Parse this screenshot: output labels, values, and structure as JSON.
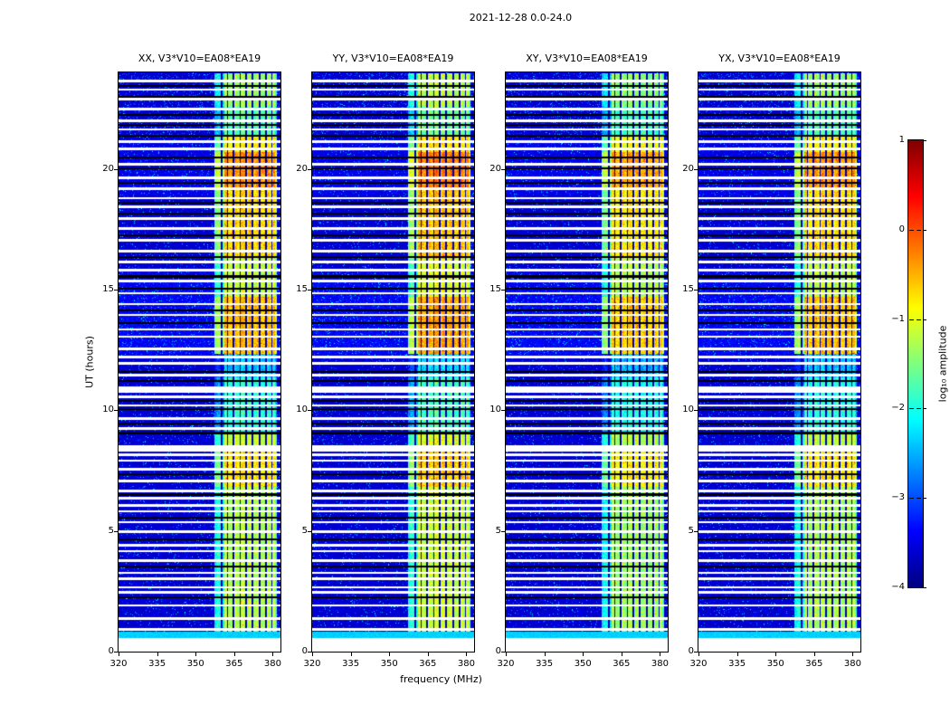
{
  "chart_data": {
    "type": "heatmap",
    "title": "2021-12-28 0.0-24.0",
    "xlabel": "frequency (MHz)",
    "ylabel": "UT (hours)",
    "colorbar_label": "log₁₀ amplitude",
    "x_range": [
      320,
      383
    ],
    "y_range": [
      0,
      24
    ],
    "x_ticks": [
      320,
      335,
      350,
      365,
      380
    ],
    "y_ticks": [
      0,
      5,
      10,
      15,
      20
    ],
    "colorbar": {
      "colormap": "jet",
      "vmin": -4,
      "vmax": 1,
      "ticks": [
        1,
        0,
        -1,
        -2,
        -3,
        -4
      ]
    },
    "panels": [
      {
        "key": "XX",
        "title": "XX, V3*V10=EA08*EA19",
        "level_offset": 0
      },
      {
        "key": "YY",
        "title": "YY, V3*V10=EA08*EA19",
        "level_offset": 0.12
      },
      {
        "key": "XY",
        "title": "XY, V3*V10=EA08*EA19",
        "level_offset": -0.1
      },
      {
        "key": "YX",
        "title": "YX, V3*V10=EA08*EA19",
        "level_offset": -0.03
      }
    ],
    "background_level": -3.6,
    "rfi_band": {
      "f_start": 357.5,
      "f_main": 361.3,
      "f_end": 381.8,
      "channel_notches": [
        360.3,
        362.5,
        364.7,
        367.4,
        369.6,
        372.3,
        374.9,
        377.6,
        379.8
      ],
      "time_profile": [
        {
          "t0": 0.8,
          "t1": 6.8,
          "level": -1.25
        },
        {
          "t0": 6.8,
          "t1": 8.35,
          "level": -0.75
        },
        {
          "t0": 8.35,
          "t1": 9.1,
          "level": -1.15
        },
        {
          "t0": 9.1,
          "t1": 11.35,
          "level": -1.9
        },
        {
          "t0": 11.35,
          "t1": 12.35,
          "level": -2.4
        },
        {
          "t0": 12.35,
          "t1": 14.7,
          "level": -0.55
        },
        {
          "t0": 14.7,
          "t1": 16.3,
          "level": -1.15
        },
        {
          "t0": 16.3,
          "t1": 19.2,
          "level": -0.7
        },
        {
          "t0": 19.2,
          "t1": 20.7,
          "level": -0.35
        },
        {
          "t0": 20.7,
          "t1": 21.35,
          "level": -0.85
        },
        {
          "t0": 21.35,
          "t1": 22.6,
          "level": -1.7
        },
        {
          "t0": 22.6,
          "t1": 24.0,
          "level": -1.35
        }
      ]
    },
    "flagged_rows_white": [
      0.9,
      1.35,
      1.9,
      2.45,
      2.65,
      3.0,
      3.25,
      3.75,
      4.15,
      4.4,
      4.95,
      5.35,
      5.8,
      6.05,
      6.35,
      6.65,
      7.05,
      7.55,
      7.9,
      8.15,
      9.25,
      9.65,
      10.2,
      10.55,
      11.45,
      11.95,
      12.2,
      12.55,
      13.05,
      13.35,
      13.95,
      14.4,
      14.85,
      15.35,
      15.8,
      16.15,
      16.6,
      17.05,
      17.55,
      17.95,
      18.45,
      18.8,
      19.2,
      19.65,
      20.2,
      20.85,
      21.15,
      21.65,
      22.0,
      22.5,
      22.9,
      23.3,
      23.65
    ],
    "flagged_rows_white_wide": [
      8.4,
      10.85
    ],
    "flagged_rows_black": [
      2.25,
      3.5,
      4.65,
      5.55,
      6.5,
      7.35,
      9.05,
      9.45,
      10.05,
      10.4,
      11.2,
      11.6,
      13.6,
      14.15,
      15.05,
      15.55,
      16.35,
      17.25,
      18.15,
      18.6,
      19.45,
      20.05,
      20.5,
      21.4,
      21.85,
      22.25,
      23.0,
      23.45
    ],
    "bottom_blank": {
      "t0": 0,
      "t1": 0.55
    }
  }
}
